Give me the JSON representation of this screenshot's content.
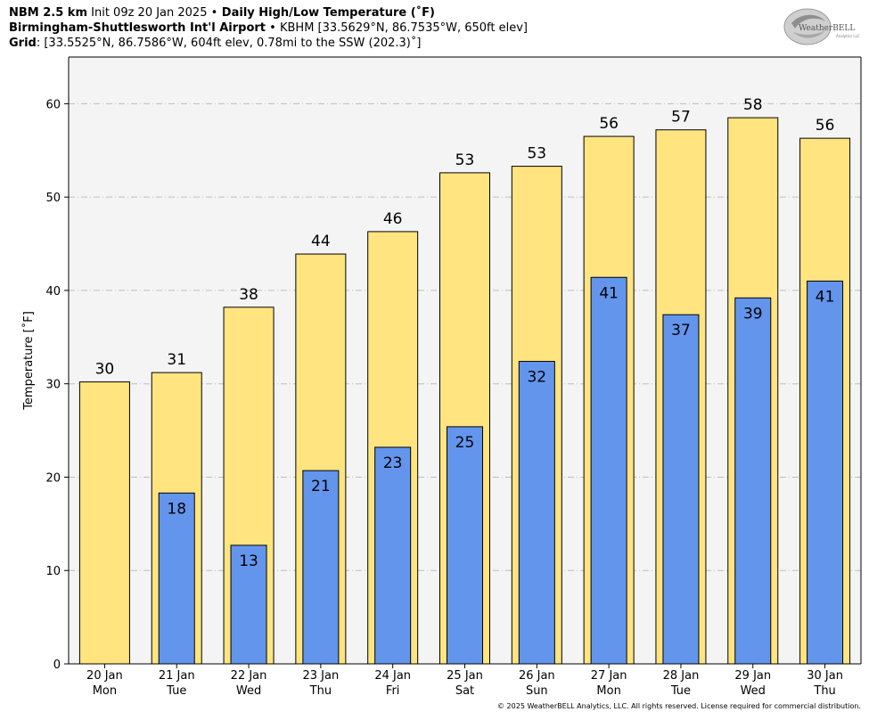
{
  "header": {
    "line1_bold_a": "NBM 2.5 km",
    "line1_init": " Init 09z 20 Jan 2025 ",
    "line1_sep": "•",
    "line1_bold_b": " Daily High/Low Temperature (˚F)",
    "line2_bold": "Birmingham-Shuttlesworth Int'l Airport",
    "line2_sep": " • ",
    "line2_rest": "KBHM [33.5629°N, 86.7535°W, 650ft elev]",
    "line3_bold": "Grid",
    "line3_rest": ": [33.5525°N, 86.7586°W, 604ft elev, 0.78mi to the SSW (202.3)˚]"
  },
  "logo": {
    "text_big": "WeatherBELL",
    "text_small": "Analytics LLC"
  },
  "copyright": "© 2025 WeatherBELL Analytics, LLC. All rights reserved. License required for commercial distribution.",
  "chart_data": {
    "type": "bar",
    "ylabel": "Temperature [˚F]",
    "ylim": [
      0,
      65
    ],
    "yticks": [
      0,
      10,
      20,
      30,
      40,
      50,
      60
    ],
    "grid": true,
    "categories": [
      {
        "date": "20 Jan",
        "day": "Mon"
      },
      {
        "date": "21 Jan",
        "day": "Tue"
      },
      {
        "date": "22 Jan",
        "day": "Wed"
      },
      {
        "date": "23 Jan",
        "day": "Thu"
      },
      {
        "date": "24 Jan",
        "day": "Fri"
      },
      {
        "date": "25 Jan",
        "day": "Sat"
      },
      {
        "date": "26 Jan",
        "day": "Sun"
      },
      {
        "date": "27 Jan",
        "day": "Mon"
      },
      {
        "date": "28 Jan",
        "day": "Tue"
      },
      {
        "date": "29 Jan",
        "day": "Wed"
      },
      {
        "date": "30 Jan",
        "day": "Thu"
      }
    ],
    "series": [
      {
        "values": [
          30.2,
          31.2,
          38.2,
          43.9,
          46.3,
          52.6,
          53.3,
          56.5,
          57.2,
          58.5,
          56.3
        ],
        "labels": [
          "30",
          "31",
          "38",
          "44",
          "46",
          "53",
          "53",
          "56",
          "57",
          "58",
          "56"
        ],
        "color": "#FFE47F"
      },
      {
        "values": [
          null,
          18.3,
          12.7,
          20.7,
          23.2,
          25.4,
          32.4,
          41.4,
          37.4,
          39.2,
          41.0
        ],
        "labels": [
          null,
          "18",
          "13",
          "21",
          "23",
          "25",
          "32",
          "41",
          "37",
          "39",
          "41"
        ],
        "color": "#6495ED"
      }
    ],
    "colors": {
      "plot_bg": "#F4F4F4",
      "grid": "#BDBDBD",
      "high_bar": "#FFE47F",
      "low_bar": "#6495ED"
    }
  }
}
